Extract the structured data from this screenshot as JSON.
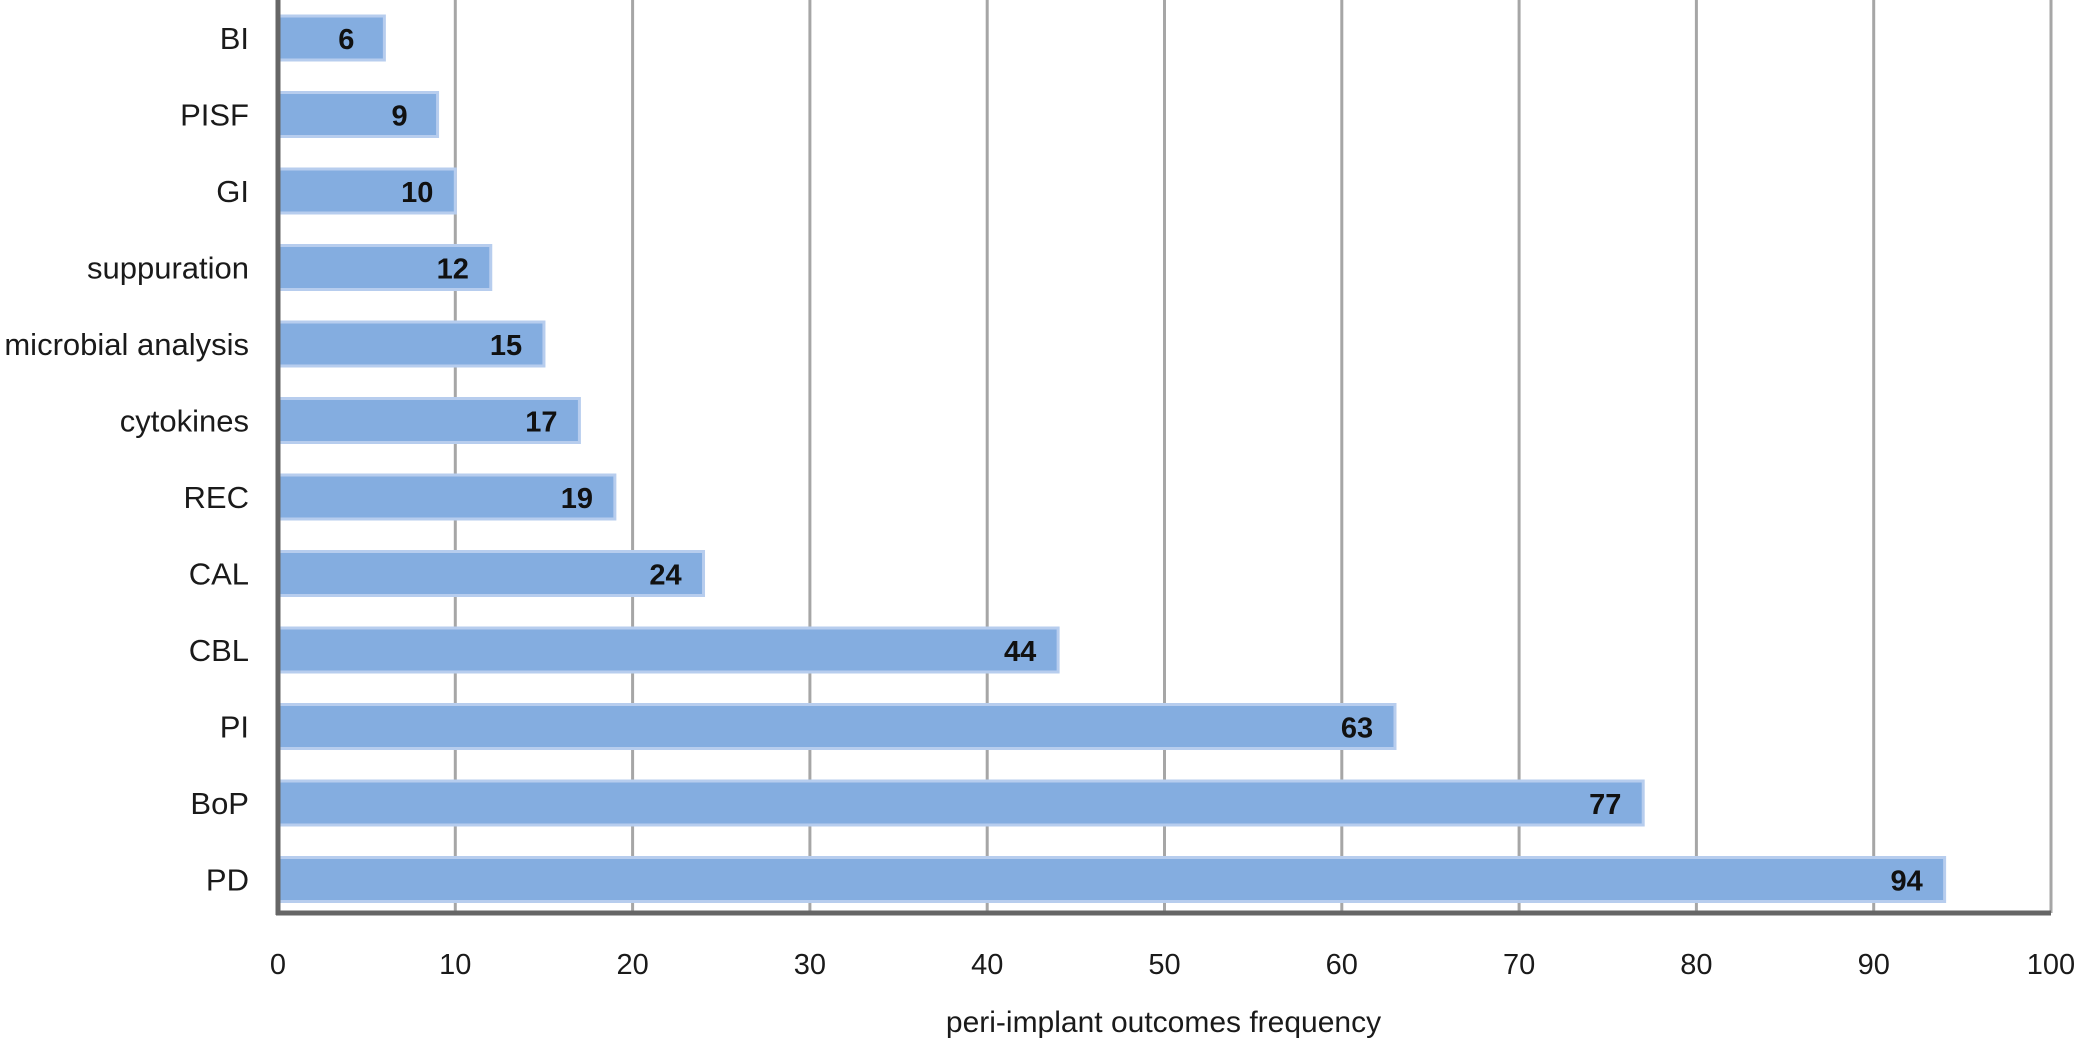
{
  "chart_data": {
    "type": "bar",
    "orientation": "horizontal",
    "categories": [
      "BI",
      "PISF",
      "GI",
      "suppuration",
      "microbial analysis",
      "cytokines",
      "REC",
      "CAL",
      "CBL",
      "PI",
      "BoP",
      "PD"
    ],
    "values": [
      6,
      9,
      10,
      12,
      15,
      17,
      19,
      24,
      44,
      63,
      77,
      94
    ],
    "data_labels": [
      "6",
      "9",
      "10",
      "12",
      "15",
      "17",
      "19",
      "24",
      "44",
      "63",
      "77",
      "94"
    ],
    "title": "",
    "xlabel": "peri-implant outcomes frequency",
    "ylabel": "",
    "xlim": [
      0,
      100
    ],
    "xticks": [
      "0",
      "10",
      "20",
      "30",
      "40",
      "50",
      "60",
      "70",
      "80",
      "90",
      "100"
    ],
    "grid": "vertical",
    "legend": "none",
    "bar_color": "#84ade0",
    "bar_edge_color": "#b7cdee",
    "gridline_color": "#a6a6a6",
    "axis_color": "#666666"
  }
}
